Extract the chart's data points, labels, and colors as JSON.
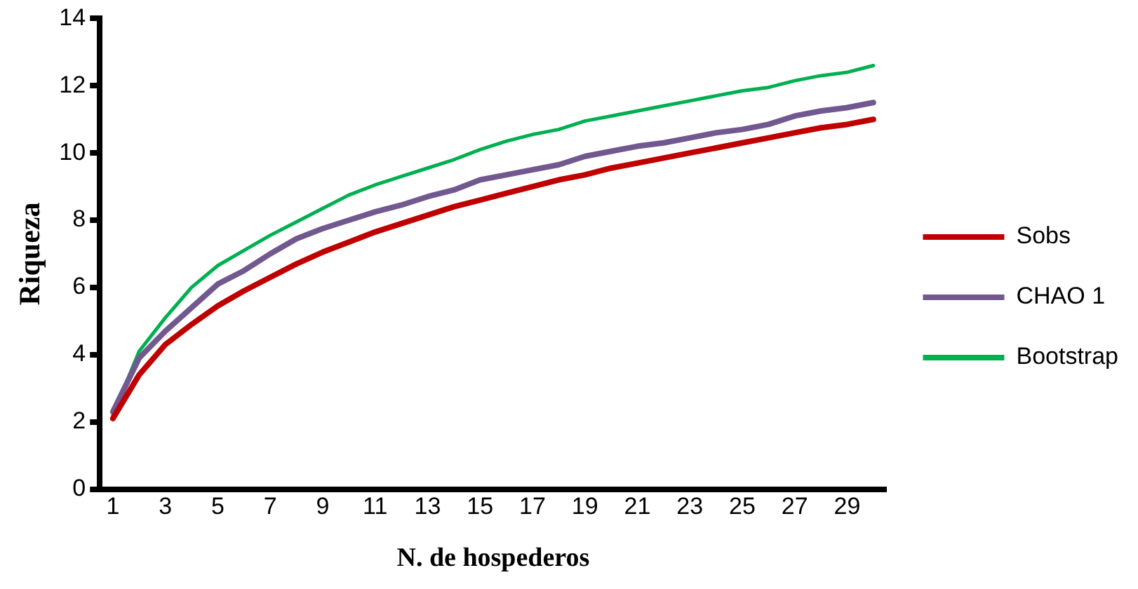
{
  "chart_data": {
    "type": "line",
    "xlabel": "N. de hospederos",
    "ylabel": "Riqueza",
    "x": [
      1,
      2,
      3,
      4,
      5,
      6,
      7,
      8,
      9,
      10,
      11,
      12,
      13,
      14,
      15,
      16,
      17,
      18,
      19,
      20,
      21,
      22,
      23,
      24,
      25,
      26,
      27,
      28,
      29,
      30
    ],
    "xlim": [
      0.5,
      30.5
    ],
    "xticks": [
      1,
      3,
      5,
      7,
      9,
      11,
      13,
      15,
      17,
      19,
      21,
      23,
      25,
      27,
      29
    ],
    "series": [
      {
        "name": "Sobs",
        "color": "#c00000",
        "values": [
          2.1,
          3.4,
          4.3,
          4.9,
          5.45,
          5.9,
          6.3,
          6.7,
          7.05,
          7.35,
          7.65,
          7.9,
          8.15,
          8.4,
          8.6,
          8.8,
          9.0,
          9.2,
          9.35,
          9.55,
          9.7,
          9.85,
          10.0,
          10.15,
          10.3,
          10.45,
          10.6,
          10.75,
          10.85,
          11.0
        ]
      },
      {
        "name": "CHAO 1",
        "color": "#71588f",
        "values": [
          2.3,
          3.9,
          4.7,
          5.4,
          6.1,
          6.5,
          7.0,
          7.45,
          7.75,
          8.0,
          8.25,
          8.45,
          8.7,
          8.9,
          9.2,
          9.35,
          9.5,
          9.65,
          9.9,
          10.05,
          10.2,
          10.3,
          10.45,
          10.6,
          10.7,
          10.85,
          11.1,
          11.25,
          11.35,
          11.5
        ]
      },
      {
        "name": "Bootstrap",
        "color": "#00b050",
        "values": [
          2.2,
          4.1,
          5.1,
          6.0,
          6.65,
          7.1,
          7.55,
          7.95,
          8.35,
          8.75,
          9.05,
          9.3,
          9.55,
          9.8,
          10.1,
          10.35,
          10.55,
          10.7,
          10.95,
          11.1,
          11.25,
          11.4,
          11.55,
          11.7,
          11.85,
          11.95,
          12.15,
          12.3,
          12.4,
          12.6
        ]
      }
    ],
    "ylim": [
      0,
      14
    ],
    "yticks": [
      0,
      2,
      4,
      6,
      8,
      10,
      12,
      14
    ],
    "grid": false,
    "legend": "right",
    "marker": "none",
    "line_style": "solid"
  }
}
